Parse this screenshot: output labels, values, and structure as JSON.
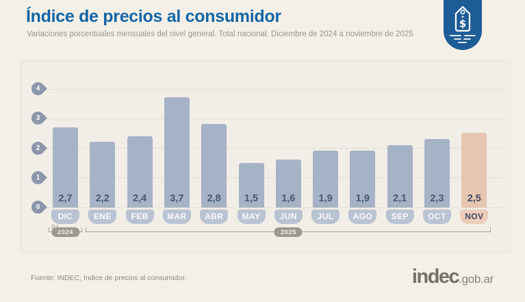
{
  "header": {
    "title": "Índice de precios al consumidor",
    "subtitle": "Variaciones porcentuales mensuales del nivel general. Total nacional. Diciembre de 2024 a noviembre de 2025"
  },
  "badge": {
    "icon": "price-tag-icon"
  },
  "chart_data": {
    "type": "bar",
    "title": "Índice de precios al consumidor",
    "categories": [
      "DIC",
      "ENE",
      "FEB",
      "MAR",
      "ABR",
      "MAY",
      "JUN",
      "JUL",
      "AGO",
      "SEP",
      "OCT",
      "NOV"
    ],
    "values": [
      2.7,
      2.2,
      2.4,
      3.7,
      2.8,
      1.5,
      1.6,
      1.9,
      1.9,
      2.1,
      2.3,
      2.5
    ],
    "value_labels": [
      "2,7",
      "2,2",
      "2,4",
      "3,7",
      "2,8",
      "1,5",
      "1,6",
      "1,9",
      "1,9",
      "2,1",
      "2,3",
      "2,5"
    ],
    "highlight_index": 11,
    "y_ticks": [
      0,
      1,
      2,
      3,
      4
    ],
    "ylim": [
      0,
      4.3
    ],
    "grid": true,
    "legend": "none",
    "unit_label": "%",
    "year_groups": [
      {
        "label": "2024",
        "from": 0,
        "to": 0
      },
      {
        "label": "2025",
        "from": 1,
        "to": 11
      }
    ],
    "colors": {
      "bar": "#a6b2c6",
      "month_pill": "#b9c3d2",
      "month_text": "rgba(255,255,255,0.92)",
      "value_text": "#4a5870",
      "highlight_bar": "#e7c6b1",
      "highlight_pill": "#ebcdb9",
      "highlight_text": "#454a63",
      "axis_pin": "#8c97ab",
      "title_blue": "#1365a6",
      "badge_blue": "#1e5c97"
    }
  },
  "footer": {
    "source": "Fuente: INDEC, Índice de precios al consumidor.",
    "logo_main": "indec",
    "logo_suffix": ".gob.ar"
  }
}
